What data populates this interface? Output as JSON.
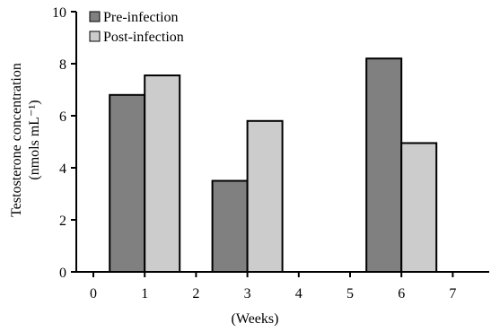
{
  "chart_data": {
    "type": "bar",
    "xlabel": "(Weeks)",
    "ylabel_lines": [
      "Testosterone concentration",
      "(nmols mL⁻¹)"
    ],
    "xlim": [
      0,
      7
    ],
    "x_ticks": [
      0,
      1,
      2,
      3,
      4,
      5,
      6,
      7
    ],
    "ylim": [
      0,
      10
    ],
    "y_ticks": [
      0,
      2,
      4,
      6,
      8,
      10
    ],
    "grid": false,
    "legend_position": "top-left",
    "series": [
      {
        "name": "Pre-infection",
        "color": "#808080",
        "points": [
          {
            "x": 1,
            "value": 6.8
          },
          {
            "x": 3,
            "value": 3.5
          },
          {
            "x": 6,
            "value": 8.2
          }
        ]
      },
      {
        "name": "Post-infection",
        "color": "#cccccc",
        "points": [
          {
            "x": 1,
            "value": 7.55
          },
          {
            "x": 3,
            "value": 5.8
          },
          {
            "x": 6,
            "value": 4.95
          }
        ]
      }
    ]
  }
}
